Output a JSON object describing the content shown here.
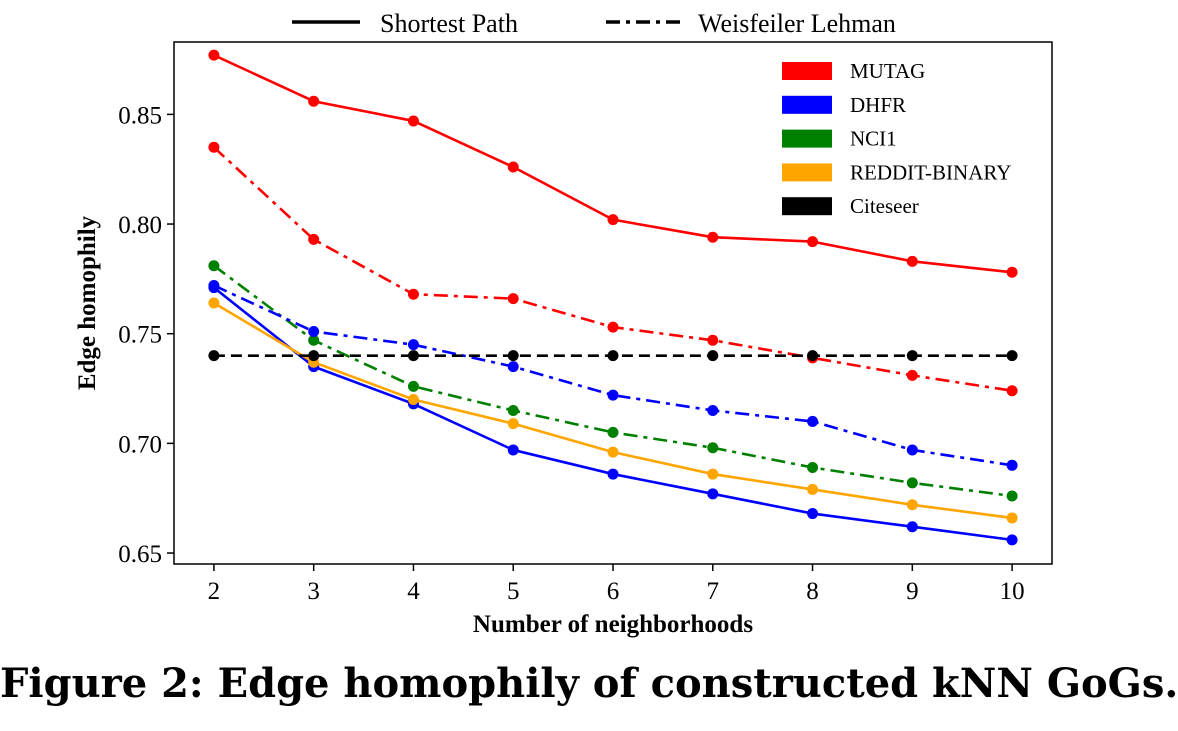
{
  "caption": "Figure 2: Edge homophily of constructed kNN GoGs.",
  "style_legend": [
    {
      "label": "Shortest Path",
      "dash": "solid"
    },
    {
      "label": "Weisfeiler Lehman",
      "dash": "dashdot"
    }
  ],
  "chart_data": {
    "type": "line",
    "title": "",
    "xlabel": "Number of neighborhoods",
    "ylabel": "Edge homophily",
    "x": [
      2,
      3,
      4,
      5,
      6,
      7,
      8,
      9,
      10
    ],
    "xlim": [
      1.6,
      10.4
    ],
    "ylim": [
      0.645,
      0.883
    ],
    "yticks": [
      0.65,
      0.7,
      0.75,
      0.8,
      0.85
    ],
    "ytick_labels": [
      "0.65",
      "0.70",
      "0.75",
      "0.80",
      "0.85"
    ],
    "grid": false,
    "legend_placement": "top-right",
    "legend": [
      {
        "name": "MUTAG",
        "color": "#ff0000"
      },
      {
        "name": "DHFR",
        "color": "#0000ff"
      },
      {
        "name": "NCI1",
        "color": "#008000"
      },
      {
        "name": "REDDIT-BINARY",
        "color": "#ffa500"
      },
      {
        "name": "Citeseer",
        "color": "#000000"
      }
    ],
    "series": [
      {
        "dataset": "MUTAG",
        "method": "Shortest Path",
        "color": "#ff0000",
        "dash": "solid",
        "values": [
          0.877,
          0.856,
          0.847,
          0.826,
          0.802,
          0.794,
          0.792,
          0.783,
          0.778
        ]
      },
      {
        "dataset": "MUTAG",
        "method": "Weisfeiler Lehman",
        "color": "#ff0000",
        "dash": "dashdot",
        "values": [
          0.835,
          0.793,
          0.768,
          0.766,
          0.753,
          0.747,
          0.739,
          0.731,
          0.724
        ]
      },
      {
        "dataset": "NCI1",
        "method": "Weisfeiler Lehman",
        "color": "#008000",
        "dash": "dashdot",
        "values": [
          0.781,
          0.747,
          0.726,
          0.715,
          0.705,
          0.698,
          0.689,
          0.682,
          0.676
        ]
      },
      {
        "dataset": "DHFR",
        "method": "Weisfeiler Lehman",
        "color": "#0000ff",
        "dash": "dashdot",
        "values": [
          0.772,
          0.751,
          0.745,
          0.735,
          0.722,
          0.715,
          0.71,
          0.697,
          0.69
        ]
      },
      {
        "dataset": "DHFR",
        "method": "Shortest Path",
        "color": "#0000ff",
        "dash": "solid",
        "values": [
          0.771,
          0.735,
          0.718,
          0.697,
          0.686,
          0.677,
          0.668,
          0.662,
          0.656
        ]
      },
      {
        "dataset": "REDDIT-BINARY",
        "method": "Shortest Path",
        "color": "#ffa500",
        "dash": "solid",
        "values": [
          0.764,
          0.737,
          0.72,
          0.709,
          0.696,
          0.686,
          0.679,
          0.672,
          0.666
        ]
      },
      {
        "dataset": "Citeseer",
        "method": "Shortest Path",
        "color": "#000000",
        "dash": "dashed",
        "values": [
          0.74,
          0.74,
          0.74,
          0.74,
          0.74,
          0.74,
          0.74,
          0.74,
          0.74
        ]
      }
    ]
  }
}
